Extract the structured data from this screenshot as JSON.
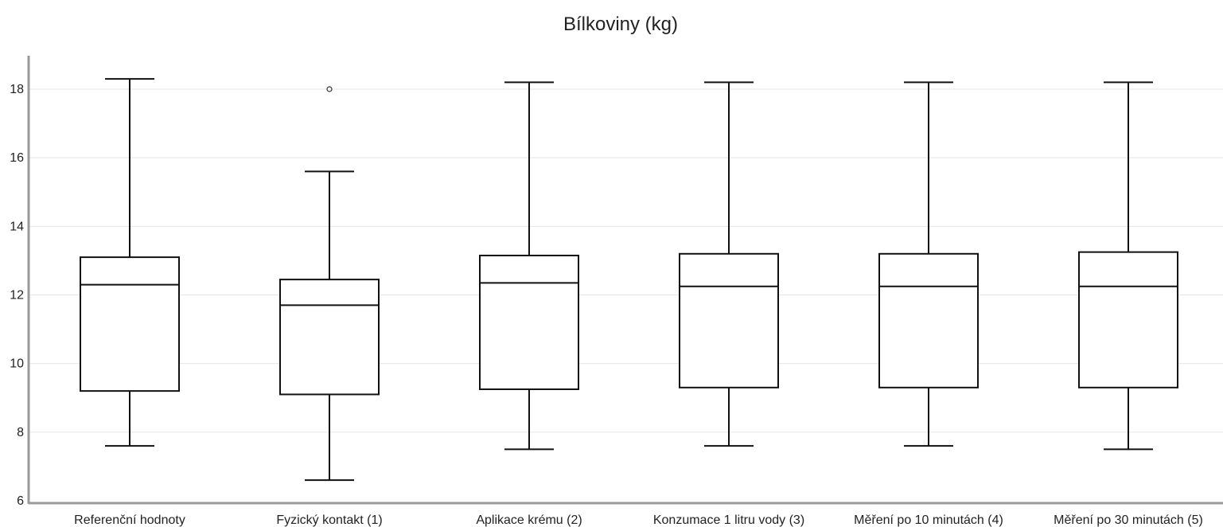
{
  "chart_data": {
    "type": "boxplot",
    "title": "Bílkoviny (kg)",
    "xlabel": "",
    "ylabel": "",
    "ylim": [
      6,
      19
    ],
    "yticks": [
      6,
      8,
      10,
      12,
      14,
      16,
      18
    ],
    "grid": true,
    "categories": [
      "Referenční hodnoty",
      "Fyzický kontakt (1)",
      "Aplikace krému (2)",
      "Konzumace 1 litru vody (3)",
      "Měření po 10 minutách (4)",
      "Měření po 30 minutách (5)"
    ],
    "boxes": [
      {
        "whisker_low": 7.6,
        "q1": 9.2,
        "median": 12.3,
        "q3": 13.1,
        "whisker_high": 18.3,
        "outliers": []
      },
      {
        "whisker_low": 6.6,
        "q1": 9.1,
        "median": 11.7,
        "q3": 12.45,
        "whisker_high": 15.6,
        "outliers": [
          18.0
        ]
      },
      {
        "whisker_low": 7.5,
        "q1": 9.25,
        "median": 12.35,
        "q3": 13.15,
        "whisker_high": 18.2,
        "outliers": []
      },
      {
        "whisker_low": 7.6,
        "q1": 9.3,
        "median": 12.25,
        "q3": 13.2,
        "whisker_high": 18.2,
        "outliers": []
      },
      {
        "whisker_low": 7.6,
        "q1": 9.3,
        "median": 12.25,
        "q3": 13.2,
        "whisker_high": 18.2,
        "outliers": []
      },
      {
        "whisker_low": 7.5,
        "q1": 9.3,
        "median": 12.25,
        "q3": 13.25,
        "whisker_high": 18.2,
        "outliers": []
      }
    ],
    "colors": {
      "box_stroke": "#111111",
      "box_fill": "#ffffff",
      "grid": "#e6e6e6",
      "axis": "#999999"
    }
  }
}
